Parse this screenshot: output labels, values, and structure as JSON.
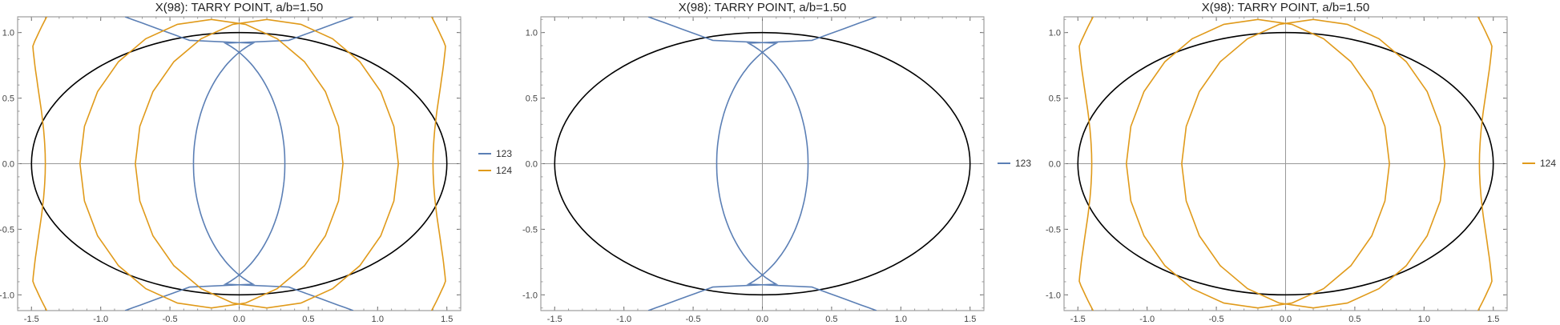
{
  "chart_data": [
    {
      "type": "line",
      "title": "X(98): TARRY POINT, a/b=1.50",
      "xlabel": "",
      "ylabel": "",
      "xlim": [
        -1.6,
        1.6
      ],
      "ylim": [
        -1.12,
        1.12
      ],
      "x_ticks": [
        "-1.5",
        "-1.0",
        "-0.5",
        "0.0",
        "0.5",
        "1.0",
        "1.5"
      ],
      "y_ticks": [
        "1.0",
        "0.5",
        "0.0",
        "-0.5",
        "-1.0"
      ],
      "grid": false,
      "legend_position": "right",
      "series": [
        {
          "name": "123",
          "color": "#5b7fb5"
        },
        {
          "name": "124",
          "color": "#e09a1a"
        }
      ],
      "ellipse": {
        "a": 1.5,
        "b": 1.0,
        "color": "#000000"
      }
    },
    {
      "type": "line",
      "title": "X(98): TARRY POINT, a/b=1.50",
      "xlabel": "",
      "ylabel": "",
      "xlim": [
        -1.6,
        1.6
      ],
      "ylim": [
        -1.12,
        1.12
      ],
      "x_ticks": [
        "-1.5",
        "-1.0",
        "-0.5",
        "0.0",
        "0.5",
        "1.0",
        "1.5"
      ],
      "y_ticks": [
        "1.0",
        "0.5",
        "0.0",
        "-0.5",
        "-1.0"
      ],
      "grid": false,
      "legend_position": "right",
      "series": [
        {
          "name": "123",
          "color": "#5b7fb5"
        }
      ],
      "ellipse": {
        "a": 1.5,
        "b": 1.0,
        "color": "#000000"
      }
    },
    {
      "type": "line",
      "title": "X(98): TARRY POINT, a/b=1.50",
      "xlabel": "",
      "ylabel": "",
      "xlim": [
        -1.6,
        1.6
      ],
      "ylim": [
        -1.12,
        1.12
      ],
      "x_ticks": [
        "-1.5",
        "-1.0",
        "-0.5",
        "0.0",
        "0.5",
        "1.0",
        "1.5"
      ],
      "y_ticks": [
        "1.0",
        "0.5",
        "0.0",
        "-0.5",
        "-1.0"
      ],
      "grid": false,
      "legend_position": "right",
      "series": [
        {
          "name": "124",
          "color": "#e09a1a"
        }
      ],
      "ellipse": {
        "a": 1.5,
        "b": 1.0,
        "color": "#000000"
      }
    }
  ]
}
